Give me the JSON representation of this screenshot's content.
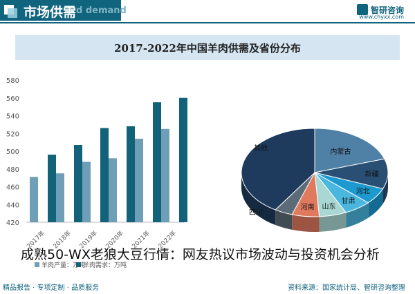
{
  "header": {
    "title": "市场供需",
    "subtitle": "d demand",
    "brand": "智研咨询",
    "url": "www.chyxx.com"
  },
  "footer": {
    "left": "精品报告 · 专项定制 · 品质服务",
    "source": "资料来源：国家统计局、智研咨询整理"
  },
  "overlay_text": "成熟50-WX老狼大豆行情：网友热议市场波动与投资机会分析",
  "colors": {
    "supply": "#6f9fb6",
    "demand": "#12627a",
    "header": "#10647e"
  },
  "chart_data": [
    {
      "type": "bar",
      "title": "2017-2022年中国羊肉供需及省份分布",
      "categories": [
        "2017年",
        "2018年",
        "2019年",
        "2020年",
        "2021年",
        "2022年"
      ],
      "series": [
        {
          "name": "羊肉产量：万吨",
          "values": [
            471,
            475,
            488,
            492,
            514,
            525
          ]
        },
        {
          "name": "羊肉需求：万吨",
          "values": [
            496,
            507,
            526,
            528,
            555,
            560
          ]
        }
      ],
      "ylim": [
        420,
        580
      ],
      "yticks": [
        420,
        440,
        460,
        480,
        500,
        520,
        540,
        560,
        580
      ],
      "grid": false,
      "legend": "bottom-left"
    },
    {
      "type": "pie",
      "slices": [
        {
          "label": "内蒙古",
          "value": 20,
          "color": "#4f81a7"
        },
        {
          "label": "新疆",
          "value": 11,
          "color": "#2a4f74"
        },
        {
          "label": "河北",
          "value": 6,
          "color": "#1c99cf"
        },
        {
          "label": "甘肃",
          "value": 6,
          "color": "#4ab7df"
        },
        {
          "label": "山东",
          "value": 6,
          "color": "#a9d8d4"
        },
        {
          "label": "河南",
          "value": 6,
          "color": "#e07a5f"
        },
        {
          "label": "四川",
          "value": 4,
          "color": "#5b6b78"
        },
        {
          "label": "其他",
          "value": 41,
          "color": "#1e3a5c"
        }
      ]
    }
  ]
}
